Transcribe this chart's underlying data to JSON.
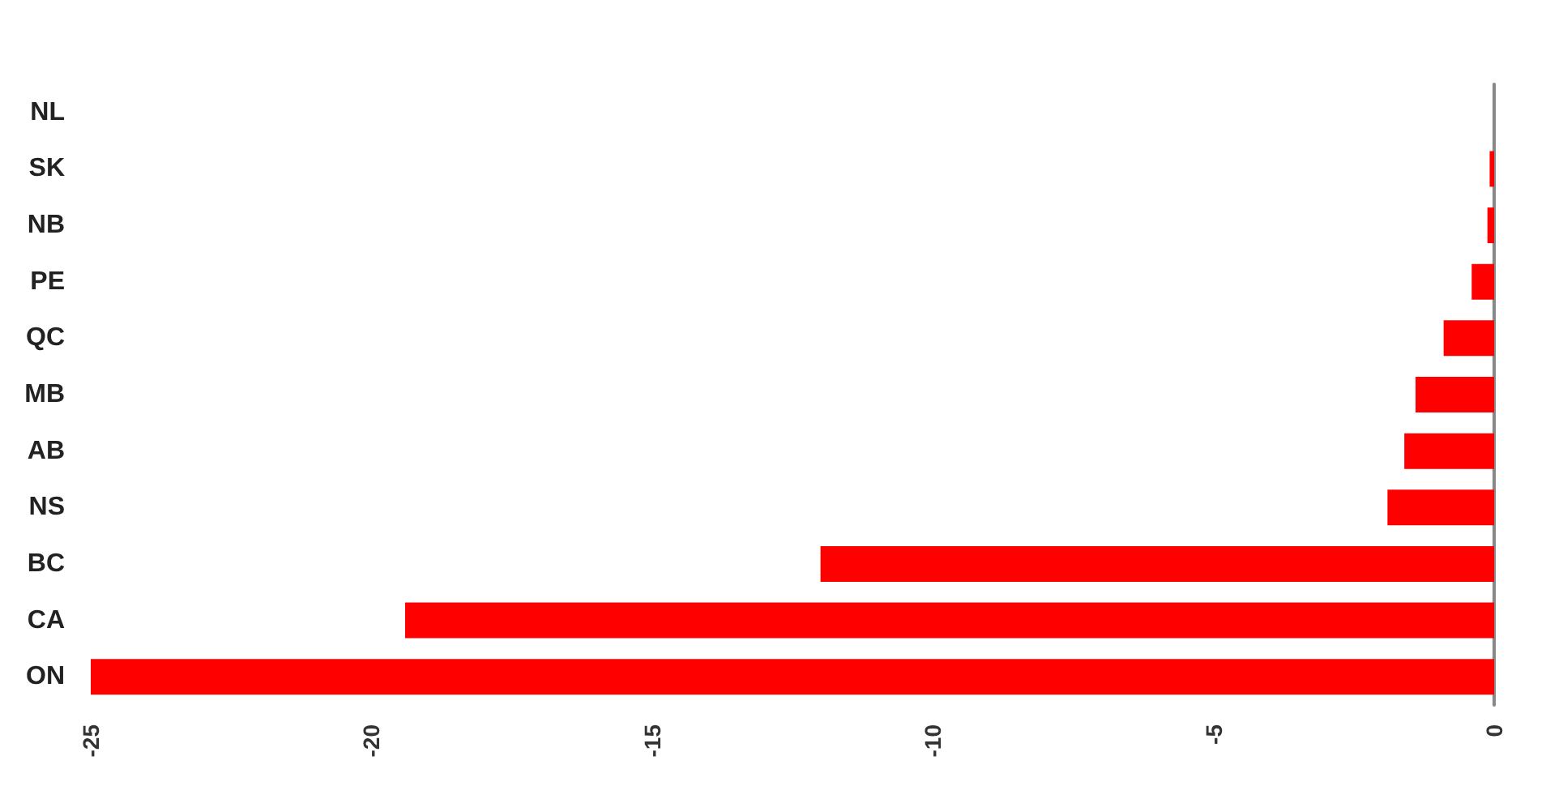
{
  "chart_data": {
    "type": "bar",
    "orientation": "horizontal",
    "categories": [
      "NL",
      "SK",
      "NB",
      "PE",
      "QC",
      "MB",
      "AB",
      "NS",
      "BC",
      "CA",
      "ON"
    ],
    "values": [
      0,
      -0.08,
      -0.12,
      -0.4,
      -0.9,
      -1.4,
      -1.6,
      -1.9,
      -12.0,
      -19.4,
      -25.0
    ],
    "color": "#ff0000",
    "xlim": [
      -25,
      0
    ],
    "xticks": [
      -25,
      -20,
      -15,
      -10,
      -5,
      0
    ],
    "grid": false
  }
}
